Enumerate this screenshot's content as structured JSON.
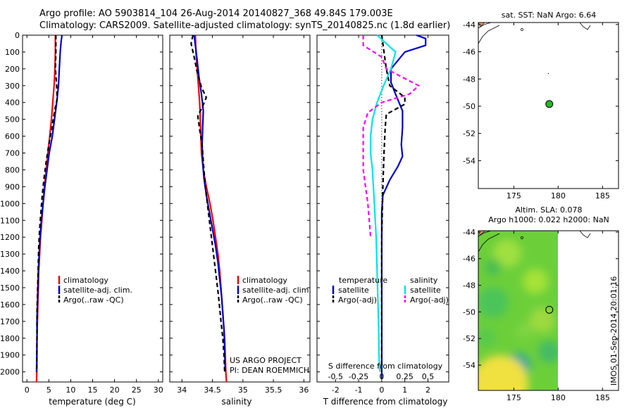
{
  "header": {
    "line1": "Argo profile: AO 5903814_104 26-Aug-2014 20140827_368 49.84S 179.003E",
    "line2": "Climatology: CARS2009. Satellite-adjusted climatology: synTS_20140825.nc (1.8d earlier)"
  },
  "credits": {
    "line1": "US ARGO PROJECT",
    "line2": "PI: DEAN ROEMMICH"
  },
  "timestamp": "IMOS 01-Sep-2014 20:01:16",
  "colors": {
    "climatology": "#ff0000",
    "satellite": "#0000cc",
    "argo": "#000000",
    "sal_sat": "#00e5e5",
    "sal_argo": "#ff00ff",
    "float_marker": "#22bb22"
  },
  "chart_data": [
    {
      "id": "temp",
      "type": "line",
      "xlabel": "temperature (deg C)",
      "ylabel": "",
      "xlim": [
        -1,
        31
      ],
      "ylim": [
        2060,
        0
      ],
      "y_reversed": true,
      "xticks": [
        0,
        5,
        10,
        15,
        20,
        25,
        30
      ],
      "yticks": [
        0,
        100,
        200,
        300,
        400,
        500,
        600,
        700,
        800,
        900,
        1000,
        1100,
        1200,
        1300,
        1400,
        1500,
        1600,
        1700,
        1800,
        1900,
        2000
      ],
      "legend": [
        "climatology",
        "satellite-adj. clim.",
        "Argo(..raw -QC)"
      ],
      "series": [
        {
          "name": "climatology",
          "style": "solid",
          "color": "#ff0000",
          "x": [
            6.5,
            6.5,
            6.4,
            6.2,
            5.9,
            5.6,
            5.2,
            4.8,
            4.4,
            4.0,
            3.7,
            3.4,
            3.1,
            2.9,
            2.7,
            2.6,
            2.5,
            2.4,
            2.3,
            2.3,
            2.25,
            2.2
          ],
          "y": [
            0,
            100,
            200,
            300,
            400,
            500,
            600,
            700,
            800,
            900,
            1000,
            1100,
            1200,
            1300,
            1400,
            1500,
            1600,
            1700,
            1800,
            1900,
            2000,
            2060
          ]
        },
        {
          "name": "satellite-adj. clim.",
          "style": "solid",
          "color": "#0000cc",
          "x": [
            8.0,
            7.8,
            7.6,
            7.4,
            7.2,
            6.8,
            6.3,
            5.8,
            5.1,
            4.6,
            4.1,
            3.7,
            3.3,
            3.0,
            2.8,
            2.6,
            2.5,
            2.4,
            2.3,
            2.3,
            2.25,
            2.2
          ],
          "y": [
            0,
            40,
            100,
            200,
            300,
            400,
            500,
            600,
            700,
            800,
            900,
            1000,
            1100,
            1200,
            1300,
            1400,
            1500,
            1600,
            1700,
            1800,
            1900,
            2000
          ]
        },
        {
          "name": "Argo(..raw -QC)",
          "style": "dashed",
          "color": "#000000",
          "x": [
            6.6,
            6.6,
            6.5,
            6.8,
            6.9,
            6.3,
            5.7,
            5.0,
            4.4,
            3.9,
            3.5,
            3.2,
            2.9,
            2.7,
            2.6,
            2.5,
            2.4,
            2.3,
            2.3,
            2.25
          ],
          "y": [
            0,
            100,
            200,
            300,
            380,
            450,
            550,
            650,
            750,
            850,
            950,
            1050,
            1150,
            1250,
            1350,
            1450,
            1550,
            1650,
            1800,
            2000
          ]
        }
      ]
    },
    {
      "id": "sal",
      "type": "line",
      "xlabel": "salinity",
      "ylabel": "",
      "xlim": [
        33.8,
        36.1
      ],
      "ylim": [
        2060,
        0
      ],
      "y_reversed": true,
      "xticks": [
        34,
        34.5,
        35,
        35.5,
        36
      ],
      "legend": [
        "climatology",
        "satellite-adj. clim.",
        "Argo(..raw -QC)"
      ],
      "series": [
        {
          "name": "climatology",
          "style": "solid",
          "color": "#ff0000",
          "x": [
            34.22,
            34.23,
            34.25,
            34.27,
            34.29,
            34.3,
            34.31,
            34.32,
            34.35,
            34.4,
            34.46,
            34.51,
            34.55,
            34.59,
            34.62,
            34.64,
            34.66,
            34.68,
            34.7,
            34.71,
            34.72,
            34.73
          ],
          "y": [
            0,
            100,
            200,
            300,
            400,
            500,
            600,
            700,
            800,
            900,
            1000,
            1100,
            1200,
            1300,
            1400,
            1500,
            1600,
            1700,
            1800,
            1900,
            2000,
            2060
          ]
        },
        {
          "name": "satellite-adj. clim.",
          "style": "solid",
          "color": "#0000cc",
          "x": [
            34.2,
            34.22,
            34.25,
            34.28,
            34.32,
            34.35,
            34.34,
            34.33,
            34.34,
            34.36,
            34.4,
            34.45,
            34.5,
            34.55,
            34.59,
            34.62,
            34.65,
            34.67,
            34.69,
            34.7,
            34.71
          ],
          "y": [
            0,
            60,
            150,
            250,
            350,
            450,
            550,
            650,
            750,
            850,
            950,
            1050,
            1150,
            1250,
            1350,
            1450,
            1550,
            1650,
            1750,
            1850,
            2000
          ]
        },
        {
          "name": "Argo(..raw -QC)",
          "style": "dashed",
          "color": "#000000",
          "x": [
            34.18,
            34.15,
            34.2,
            34.25,
            34.32,
            34.4,
            34.33,
            34.26,
            34.29,
            34.33,
            34.36,
            34.4,
            34.45,
            34.5,
            34.55,
            34.6,
            34.64,
            34.67,
            34.69,
            34.7
          ],
          "y": [
            0,
            50,
            130,
            220,
            310,
            370,
            430,
            480,
            560,
            650,
            800,
            950,
            1100,
            1250,
            1400,
            1550,
            1700,
            1800,
            1900,
            2000
          ]
        }
      ]
    },
    {
      "id": "diff",
      "type": "line",
      "xlabel": "T difference from climatology",
      "x2label": "S difference from climatology",
      "xlim": [
        -2.8,
        2.9
      ],
      "ylim": [
        2060,
        0
      ],
      "y_reversed": true,
      "xticks": [
        -2,
        -1,
        0,
        1,
        2
      ],
      "x2ticks": [
        "-0.5",
        "-0.25",
        "0",
        "0.25",
        "0.5"
      ],
      "legend_titles": [
        "temperature",
        "salinity"
      ],
      "legend": [
        "satellite",
        "Argo(-adj)",
        "satellite",
        "Argo(-adj)"
      ],
      "series": [
        {
          "name": "satellite",
          "group": "temperature",
          "style": "solid",
          "color": "#0000cc",
          "x": [
            1.5,
            1.9,
            1.9,
            1.0,
            0.4,
            0.4,
            0.6,
            0.9,
            0.9,
            0.85,
            0.9,
            0.7,
            0.35,
            0.05,
            0.0,
            0.0,
            0.0,
            0.0,
            0.0,
            0.0,
            0.0,
            0.0
          ],
          "y": [
            0,
            20,
            60,
            100,
            200,
            280,
            350,
            450,
            550,
            650,
            720,
            780,
            860,
            950,
            1050,
            1200,
            1400,
            1600,
            1800,
            1900,
            2000,
            2040
          ]
        },
        {
          "name": "Argo(-adj)",
          "group": "temperature",
          "style": "dashed",
          "color": "#000000",
          "x": [
            0.0,
            0.1,
            0.2,
            0.35,
            1.0,
            1.0,
            0.6,
            0.2,
            0.15,
            0.1,
            0.05,
            0.0,
            0.0,
            0.0,
            0.0
          ],
          "y": [
            0,
            100,
            200,
            300,
            370,
            410,
            440,
            470,
            550,
            700,
            900,
            1200,
            1500,
            1800,
            2000
          ]
        },
        {
          "name": "satellite",
          "group": "salinity",
          "style": "solid",
          "color": "#00e5e5",
          "x": [
            -0.05,
            0.15,
            0.1,
            0.02,
            -0.05,
            -0.1,
            -0.12,
            -0.12,
            -0.1,
            -0.08,
            -0.06,
            -0.05,
            -0.04,
            -0.03,
            -0.03,
            -0.02
          ],
          "y": [
            0,
            100,
            200,
            300,
            400,
            500,
            600,
            700,
            800,
            1000,
            1200,
            1400,
            1600,
            1800,
            1900,
            2000
          ]
        },
        {
          "name": "Argo(-adj)",
          "group": "salinity",
          "style": "dashed",
          "color": "#ff00ff",
          "x": [
            -0.2,
            -0.2,
            0.0,
            0.05,
            0.4,
            0.3,
            0.0,
            -0.15,
            -0.2,
            -0.2,
            -0.15,
            -0.12
          ],
          "y": [
            0,
            60,
            130,
            200,
            300,
            350,
            400,
            460,
            550,
            800,
            1000,
            1200
          ]
        }
      ]
    }
  ],
  "maps": [
    {
      "id": "sst_map",
      "title_line1": "sat. SST: NaN Argo: 6.64",
      "title_line2": "",
      "xticks": [
        "175",
        "180",
        "185"
      ],
      "yticks": [
        "-44",
        "-46",
        "-48",
        "-50",
        "-52",
        "-54"
      ],
      "float_lon": 179.0,
      "float_lat": -49.84
    },
    {
      "id": "sla_map",
      "title_line1": "Altim. SLA: 0.078",
      "title_line2": "Argo h1000: 0.022 h2000: NaN",
      "xticks": [
        "175",
        "180",
        "185"
      ],
      "yticks": [
        "-44",
        "-46",
        "-48",
        "-50",
        "-52",
        "-54"
      ],
      "float_lon": 179.0,
      "float_lat": -49.84
    }
  ]
}
